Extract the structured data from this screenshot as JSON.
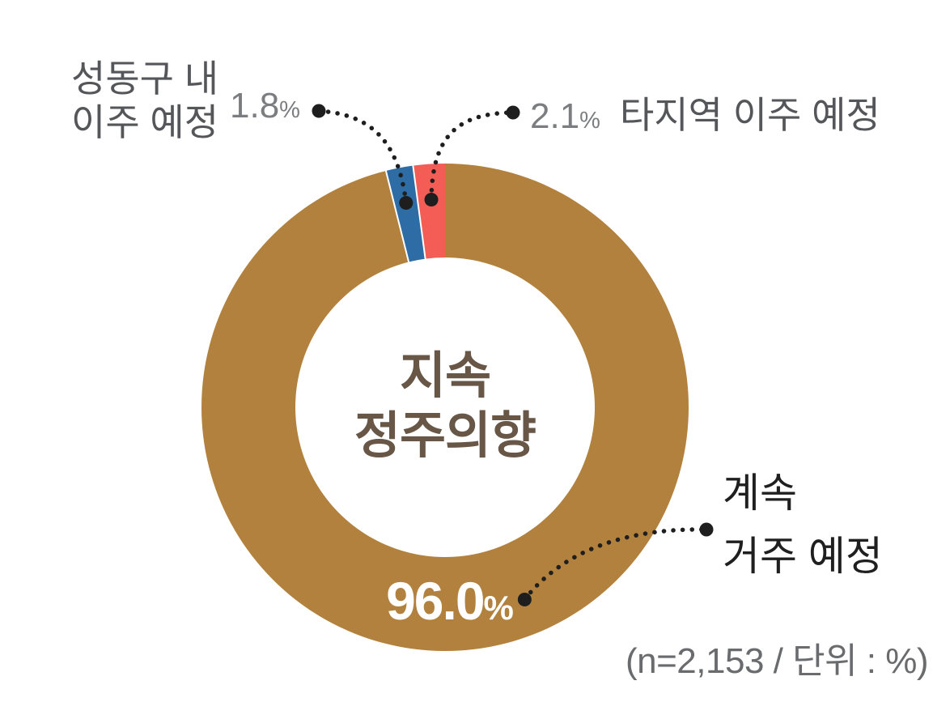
{
  "chart_data": {
    "type": "donut",
    "title": "지속 정주의향",
    "center_label_lines": [
      "지속",
      "정주의향"
    ],
    "unit": "%",
    "n": "2,153",
    "footnote": "(n=2,153 / 단위 : %)",
    "direction": "clockwise",
    "start_angle_deg": 0,
    "legend_position": "callouts",
    "grid": false,
    "segments": [
      {
        "label": "계속 거주 예정",
        "value": 96.0,
        "color": "#B2813E"
      },
      {
        "label": "성동구 내 이주 예정",
        "value": 1.8,
        "color": "#2E6CA6"
      },
      {
        "label": "타지역 이주 예정",
        "value": 2.1,
        "color": "#F45D55"
      }
    ],
    "callouts": {
      "within_seongdong": {
        "label_line1": "성동구 내",
        "label_line2": "이주 예정",
        "value": "1.8",
        "unit": "%"
      },
      "other_region": {
        "value": "2.1",
        "unit": "%",
        "label": "타지역 이주 예정"
      },
      "continue_residence": {
        "value": "96.0",
        "unit": "%",
        "label_line1": "계속",
        "label_line2": "거주 예정"
      }
    }
  },
  "colors": {
    "label_gray": "#54565A",
    "value_gray": "#7C7D80",
    "dark_text": "#1F1F1F",
    "footnote_gray": "#6A6B6E",
    "center_title": "#685747",
    "main_value_text": "#FFFFFF",
    "leader": "#1E1E1E",
    "separator": "#FFFFFF"
  }
}
